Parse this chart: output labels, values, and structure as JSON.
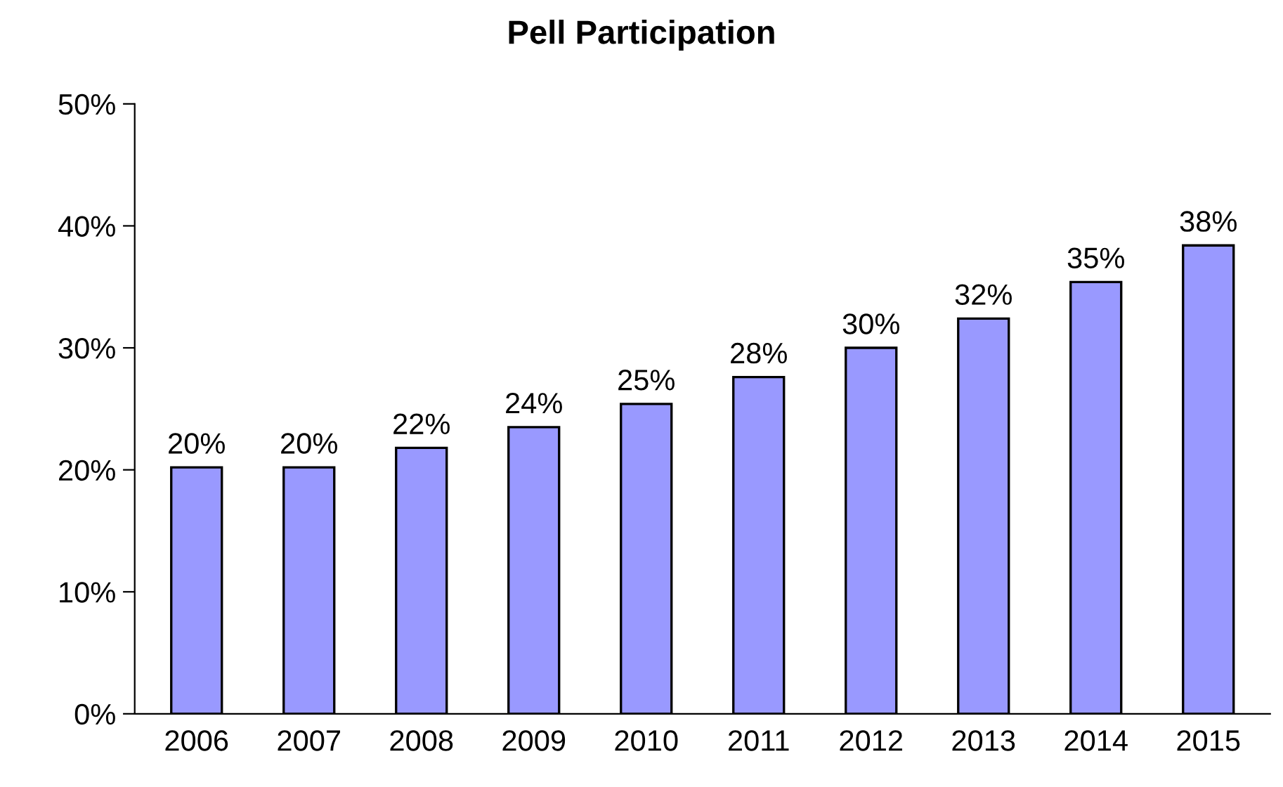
{
  "chart_data": {
    "type": "bar",
    "title": "Pell Participation",
    "categories": [
      "2006",
      "2007",
      "2008",
      "2009",
      "2010",
      "2011",
      "2012",
      "2013",
      "2014",
      "2015"
    ],
    "values": [
      20.2,
      20.2,
      21.8,
      23.5,
      25.4,
      27.6,
      30.0,
      32.4,
      35.4,
      38.4
    ],
    "value_labels": [
      "20%",
      "20%",
      "22%",
      "24%",
      "25%",
      "28%",
      "30%",
      "32%",
      "35%",
      "38%"
    ],
    "color": "#9999ff",
    "ylim": [
      0,
      50
    ],
    "yticks": [
      {
        "value": 0,
        "label": "0%"
      },
      {
        "value": 10,
        "label": "10%"
      },
      {
        "value": 20,
        "label": "20%"
      },
      {
        "value": 30,
        "label": "30%"
      },
      {
        "value": 40,
        "label": "40%"
      },
      {
        "value": 50,
        "label": "50%"
      }
    ],
    "grid": false
  }
}
